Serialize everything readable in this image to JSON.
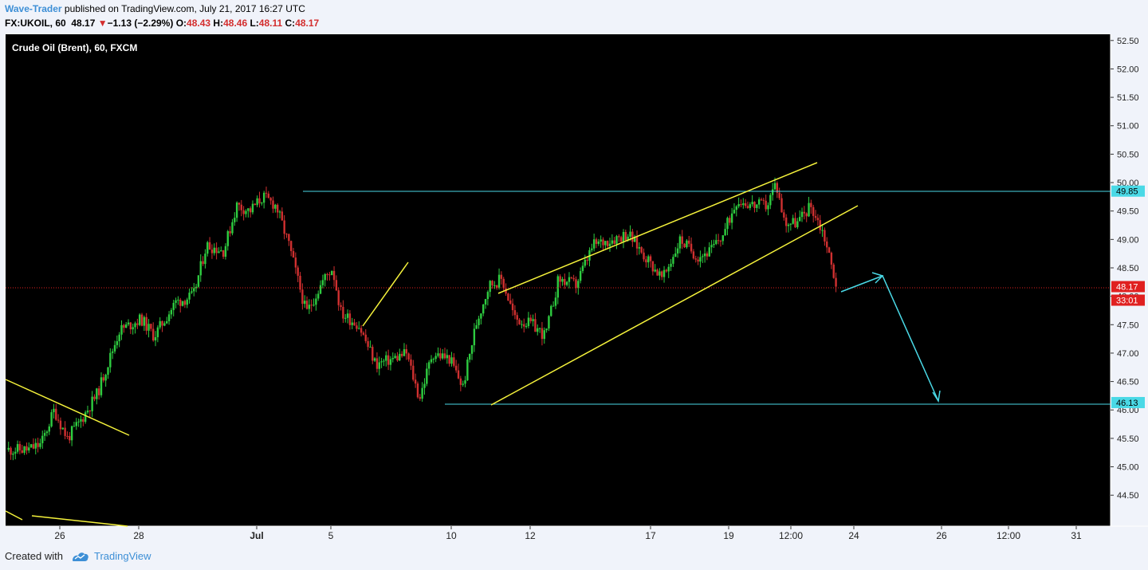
{
  "header": {
    "author": "Wave-Trader",
    "published_text": " published on TradingView.com, July 21, 2017 16:27 UTC",
    "symbol": "FX:UKOIL, 60",
    "last": "48.17",
    "change": "−1.13 (−2.29%)",
    "o_label": "O:",
    "o_value": "48.43",
    "h_label": "H:",
    "h_value": "48.46",
    "l_label": "L:",
    "l_value": "48.11",
    "c_label": "C:",
    "c_value": "48.17"
  },
  "footer": {
    "created_with": "Created with",
    "brand": "TradingView"
  },
  "colors": {
    "up": "#2ecc40",
    "down": "#d03030",
    "yellow": "#f5f23b",
    "cyan": "#4ad9e6",
    "current": "#e02020",
    "background": "#000000"
  },
  "chart_data": {
    "type": "candlestick",
    "title": "Crude Oil (Brent), 60, FXCM",
    "y_ticks": [
      "52.50",
      "52.00",
      "51.50",
      "51.00",
      "50.50",
      "50.00",
      "49.50",
      "49.00",
      "48.50",
      "48.00",
      "47.50",
      "47.00",
      "46.50",
      "46.00",
      "45.50",
      "45.00",
      "44.50"
    ],
    "ylim": [
      44.0,
      52.6
    ],
    "x_ticks": [
      "26",
      "28",
      "Jul",
      "5",
      "10",
      "12",
      "17",
      "19",
      "12:00",
      "24",
      "26",
      "12:00",
      "31"
    ],
    "price_path": [
      {
        "t": 0.0,
        "p": 45.3
      },
      {
        "t": 2.5,
        "p": 45.3
      },
      {
        "t": 4.0,
        "p": 45.4
      },
      {
        "t": 5.5,
        "p": 46.0
      },
      {
        "t": 7.0,
        "p": 45.5
      },
      {
        "t": 8.5,
        "p": 45.8
      },
      {
        "t": 10.5,
        "p": 46.3
      },
      {
        "t": 13.0,
        "p": 47.4
      },
      {
        "t": 15.5,
        "p": 47.6
      },
      {
        "t": 17.0,
        "p": 47.3
      },
      {
        "t": 19.5,
        "p": 47.9
      },
      {
        "t": 21.5,
        "p": 48.0
      },
      {
        "t": 23.0,
        "p": 48.9
      },
      {
        "t": 25.0,
        "p": 48.8
      },
      {
        "t": 26.5,
        "p": 49.6
      },
      {
        "t": 28.0,
        "p": 49.5
      },
      {
        "t": 29.5,
        "p": 49.75
      },
      {
        "t": 31.0,
        "p": 49.6
      },
      {
        "t": 32.5,
        "p": 48.9
      },
      {
        "t": 34.5,
        "p": 47.7
      },
      {
        "t": 36.5,
        "p": 48.3
      },
      {
        "t": 37.5,
        "p": 48.5
      },
      {
        "t": 38.5,
        "p": 47.7
      },
      {
        "t": 40.5,
        "p": 47.5
      },
      {
        "t": 42.5,
        "p": 46.8
      },
      {
        "t": 44.5,
        "p": 46.9
      },
      {
        "t": 46.0,
        "p": 47.0
      },
      {
        "t": 47.5,
        "p": 46.2
      },
      {
        "t": 49.0,
        "p": 47.0
      },
      {
        "t": 51.0,
        "p": 46.9
      },
      {
        "t": 52.5,
        "p": 46.4
      },
      {
        "t": 54.0,
        "p": 47.5
      },
      {
        "t": 55.5,
        "p": 48.2
      },
      {
        "t": 57.0,
        "p": 48.3
      },
      {
        "t": 58.5,
        "p": 47.6
      },
      {
        "t": 60.5,
        "p": 47.5
      },
      {
        "t": 62.0,
        "p": 47.3
      },
      {
        "t": 63.5,
        "p": 48.3
      },
      {
        "t": 65.5,
        "p": 48.2
      },
      {
        "t": 67.5,
        "p": 48.9
      },
      {
        "t": 69.5,
        "p": 49.0
      },
      {
        "t": 71.5,
        "p": 49.1
      },
      {
        "t": 73.5,
        "p": 48.7
      },
      {
        "t": 75.5,
        "p": 48.3
      },
      {
        "t": 77.5,
        "p": 49.0
      },
      {
        "t": 79.5,
        "p": 48.7
      },
      {
        "t": 81.0,
        "p": 48.8
      },
      {
        "t": 82.5,
        "p": 49.1
      },
      {
        "t": 84.0,
        "p": 49.7
      },
      {
        "t": 86.0,
        "p": 49.6
      },
      {
        "t": 87.5,
        "p": 49.6
      },
      {
        "t": 88.5,
        "p": 50.0
      },
      {
        "t": 89.5,
        "p": 49.3
      },
      {
        "t": 91.0,
        "p": 49.3
      },
      {
        "t": 92.5,
        "p": 49.6
      },
      {
        "t": 94.0,
        "p": 49.1
      },
      {
        "t": 95.5,
        "p": 48.17
      }
    ],
    "horizontal_levels": [
      {
        "value": 49.85,
        "label": "49.85"
      },
      {
        "value": 46.13,
        "label": "46.13"
      }
    ],
    "current_price": {
      "value": 48.17,
      "label": "48.17",
      "countdown": "33:01"
    }
  }
}
